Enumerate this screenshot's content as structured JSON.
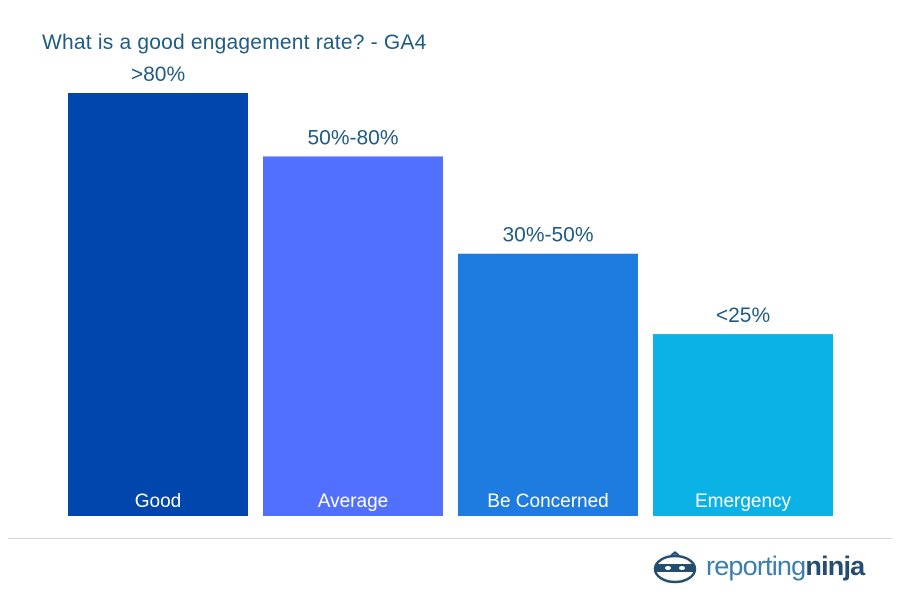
{
  "chart_data": {
    "type": "bar",
    "title": "What is a good engagement rate? - GA4",
    "categories": [
      "Good",
      "Average",
      "Be Concerned",
      "Emergency"
    ],
    "value_labels": [
      ">80%",
      "50%-80%",
      "30%-50%",
      "<25%"
    ],
    "values": [
      100,
      85,
      62,
      43
    ],
    "colors": [
      "#0046ad",
      "#5170ff",
      "#1e7be0",
      "#0ab2e6"
    ],
    "ylim": [
      0,
      100
    ],
    "grid": false,
    "legend": "none"
  },
  "brand": {
    "name_part1": "reporting",
    "name_part2": "ninja",
    "logo_icon": "ninja-head-icon"
  }
}
